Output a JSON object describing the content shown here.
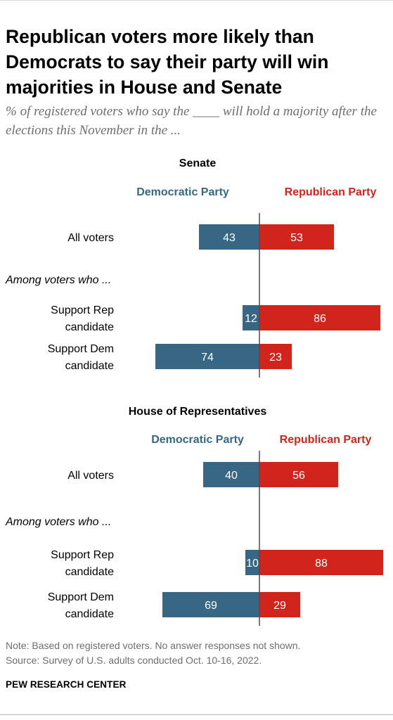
{
  "title": "Republican voters more likely than Democrats to say their party will win majorities in House and Senate",
  "subtitle": "% of registered voters who say the ____ will hold a majority after the elections this November in the ...",
  "note": "Note: Based on registered voters. No answer responses not shown.",
  "source": "Source: Survey of U.S. adults conducted Oct. 10-16, 2022.",
  "org": "PEW RESEARCH CENTER",
  "colors": {
    "democratic": "#376785",
    "republican": "#d0241c",
    "axis": "#4d4d4d"
  },
  "chart_data": [
    {
      "type": "bar",
      "title": "Senate",
      "legend": [
        "Democratic Party",
        "Republican Party"
      ],
      "group_label": "Among voters who ...",
      "categories": [
        "All voters",
        "Support Rep candidate",
        "Support Dem candidate"
      ],
      "series": [
        {
          "name": "Democratic Party",
          "values": [
            43,
            12,
            74
          ]
        },
        {
          "name": "Republican Party",
          "values": [
            53,
            86,
            23
          ]
        }
      ]
    },
    {
      "type": "bar",
      "title": "House of Representatives",
      "legend": [
        "Democratic Party",
        "Republican Party"
      ],
      "group_label": "Among voters who ...",
      "categories": [
        "All voters",
        "Support Rep candidate",
        "Support Dem candidate"
      ],
      "series": [
        {
          "name": "Democratic Party",
          "values": [
            40,
            10,
            69
          ]
        },
        {
          "name": "Republican Party",
          "values": [
            56,
            88,
            29
          ]
        }
      ]
    }
  ]
}
